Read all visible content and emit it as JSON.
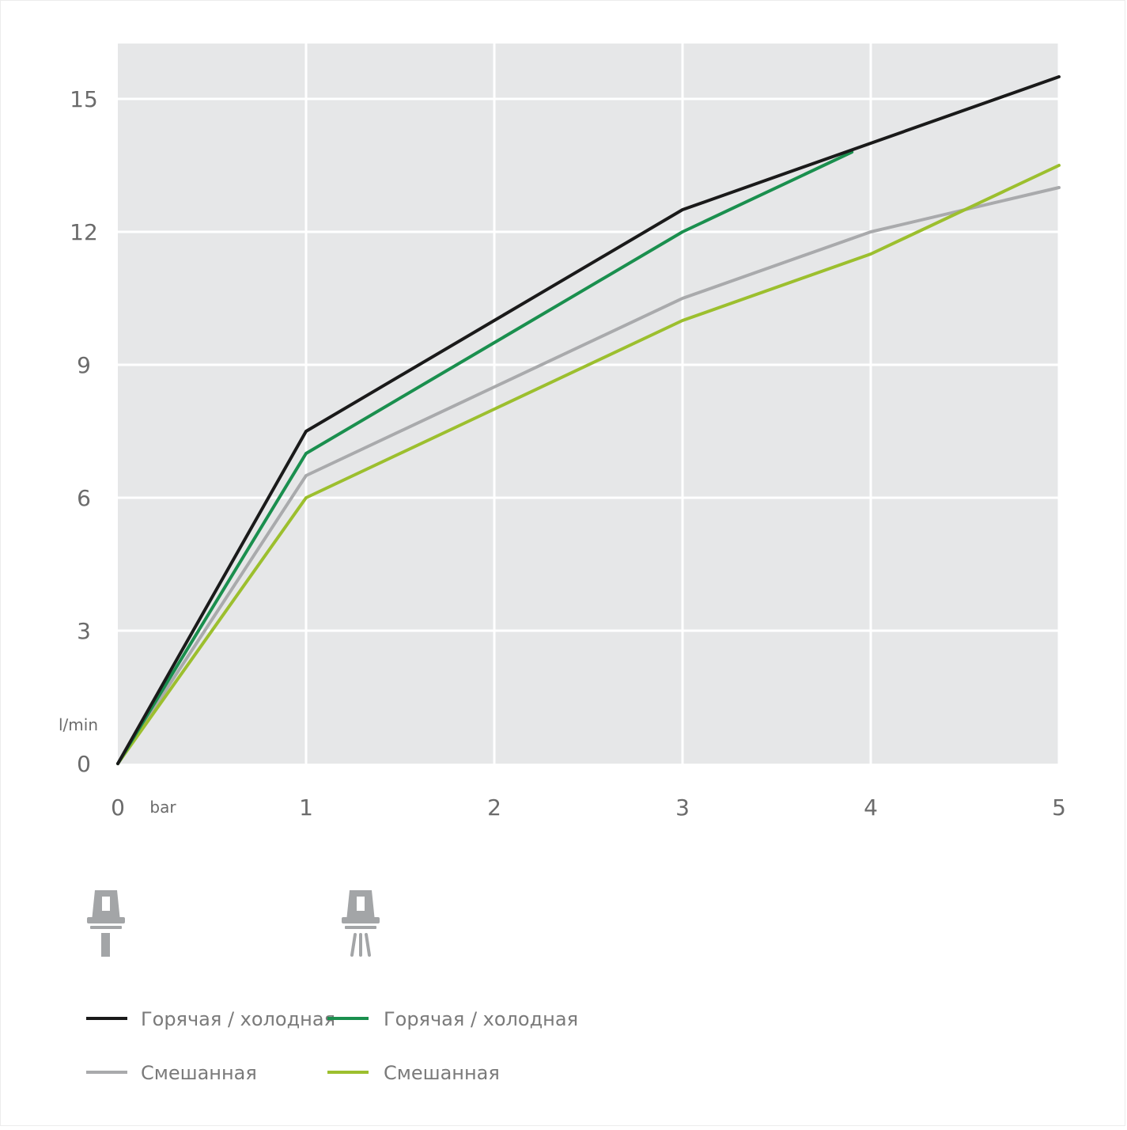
{
  "chart_data": {
    "type": "line",
    "title": "",
    "xlabel": "bar",
    "ylabel": "l/min",
    "x": [
      0,
      1,
      2,
      3,
      4,
      5
    ],
    "xlim": [
      0,
      5
    ],
    "ylim": [
      0,
      16.2
    ],
    "xticks": [
      "0",
      "1",
      "2",
      "3",
      "4",
      "5"
    ],
    "yticks": [
      0,
      3,
      6,
      9,
      12,
      15
    ],
    "ytick_labels": [
      "0",
      "3",
      "6",
      "9",
      "12",
      "15"
    ],
    "grid": true,
    "plot_background": "#e6e7e8",
    "legend_position": "bottom",
    "series": [
      {
        "name": "Горячая / холодная",
        "color": "#1a1a1a",
        "group": "jet",
        "points": [
          [
            0,
            0
          ],
          [
            1,
            7.5
          ],
          [
            2,
            10
          ],
          [
            3,
            12.5
          ],
          [
            4,
            14
          ],
          [
            5,
            15.5
          ]
        ]
      },
      {
        "name": "Смешанная",
        "color": "#a9aaac",
        "group": "jet",
        "points": [
          [
            0,
            0
          ],
          [
            1,
            6.5
          ],
          [
            2,
            8.5
          ],
          [
            3,
            10.5
          ],
          [
            4,
            12
          ],
          [
            5,
            13
          ]
        ]
      },
      {
        "name": "Горячая / холодная",
        "color": "#1a8f4e",
        "group": "spray",
        "points": [
          [
            0,
            0
          ],
          [
            1,
            7
          ],
          [
            2,
            9.5
          ],
          [
            3,
            12
          ],
          [
            3.9,
            13.8
          ]
        ]
      },
      {
        "name": "Смешанная",
        "color": "#9cbf2e",
        "group": "spray",
        "points": [
          [
            0,
            0
          ],
          [
            1,
            6
          ],
          [
            2,
            8
          ],
          [
            3,
            10
          ],
          [
            4,
            11.5
          ],
          [
            5,
            13.5
          ]
        ]
      }
    ]
  },
  "icons": {
    "jet": "jet-spray-head-icon",
    "spray": "rain-spray-head-icon",
    "color": "#a3a5a7"
  }
}
